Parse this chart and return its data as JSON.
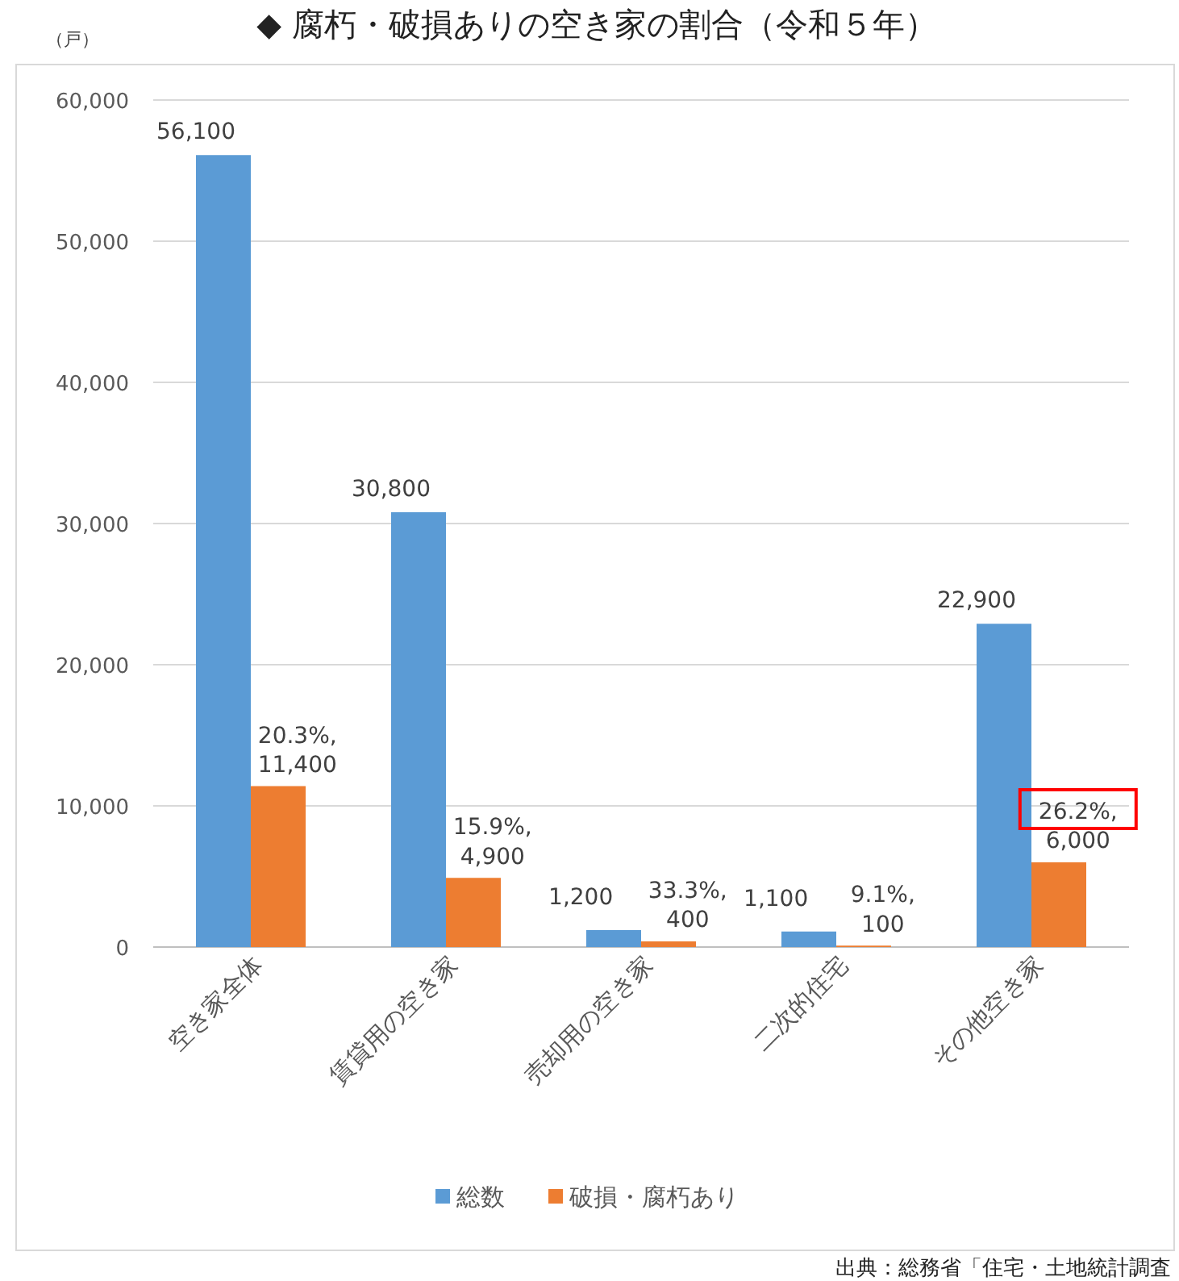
{
  "chart_data": {
    "type": "bar",
    "title": "◆ 腐朽・破損ありの空き家の割合（令和５年）",
    "ylabel": "（戸）",
    "categories": [
      "空き家全体",
      "賃貸用の空き家",
      "売却用の空き家",
      "二次的住宅",
      "その他空き家"
    ],
    "series": [
      {
        "name": "総数",
        "color": "#5b9bd5",
        "values": [
          56100,
          30800,
          1200,
          1100,
          22900
        ],
        "value_labels": [
          "56,100",
          "30,800",
          "1,200",
          "1,100",
          "22,900"
        ]
      },
      {
        "name": "破損・腐朽あり",
        "color": "#ed7d31",
        "values": [
          11400,
          4900,
          400,
          100,
          6000
        ],
        "value_labels": [
          "20.3%,\n11,400",
          "15.9%,\n4,900",
          "33.3%,\n400",
          "9.1%,\n100",
          "26.2%,\n6,000"
        ]
      }
    ],
    "ylim": [
      0,
      60000
    ],
    "yticks": [
      {
        "value": 0,
        "label": "0"
      },
      {
        "value": 10000,
        "label": "10,000"
      },
      {
        "value": 20000,
        "label": "20,000"
      },
      {
        "value": 30000,
        "label": "30,000"
      },
      {
        "value": 40000,
        "label": "40,000"
      },
      {
        "value": 50000,
        "label": "50,000"
      },
      {
        "value": 60000,
        "label": "60,000"
      }
    ],
    "grid": "y",
    "legend": "bottom",
    "annotations": [
      "出典：総務省「住宅・土地統計調査"
    ]
  }
}
